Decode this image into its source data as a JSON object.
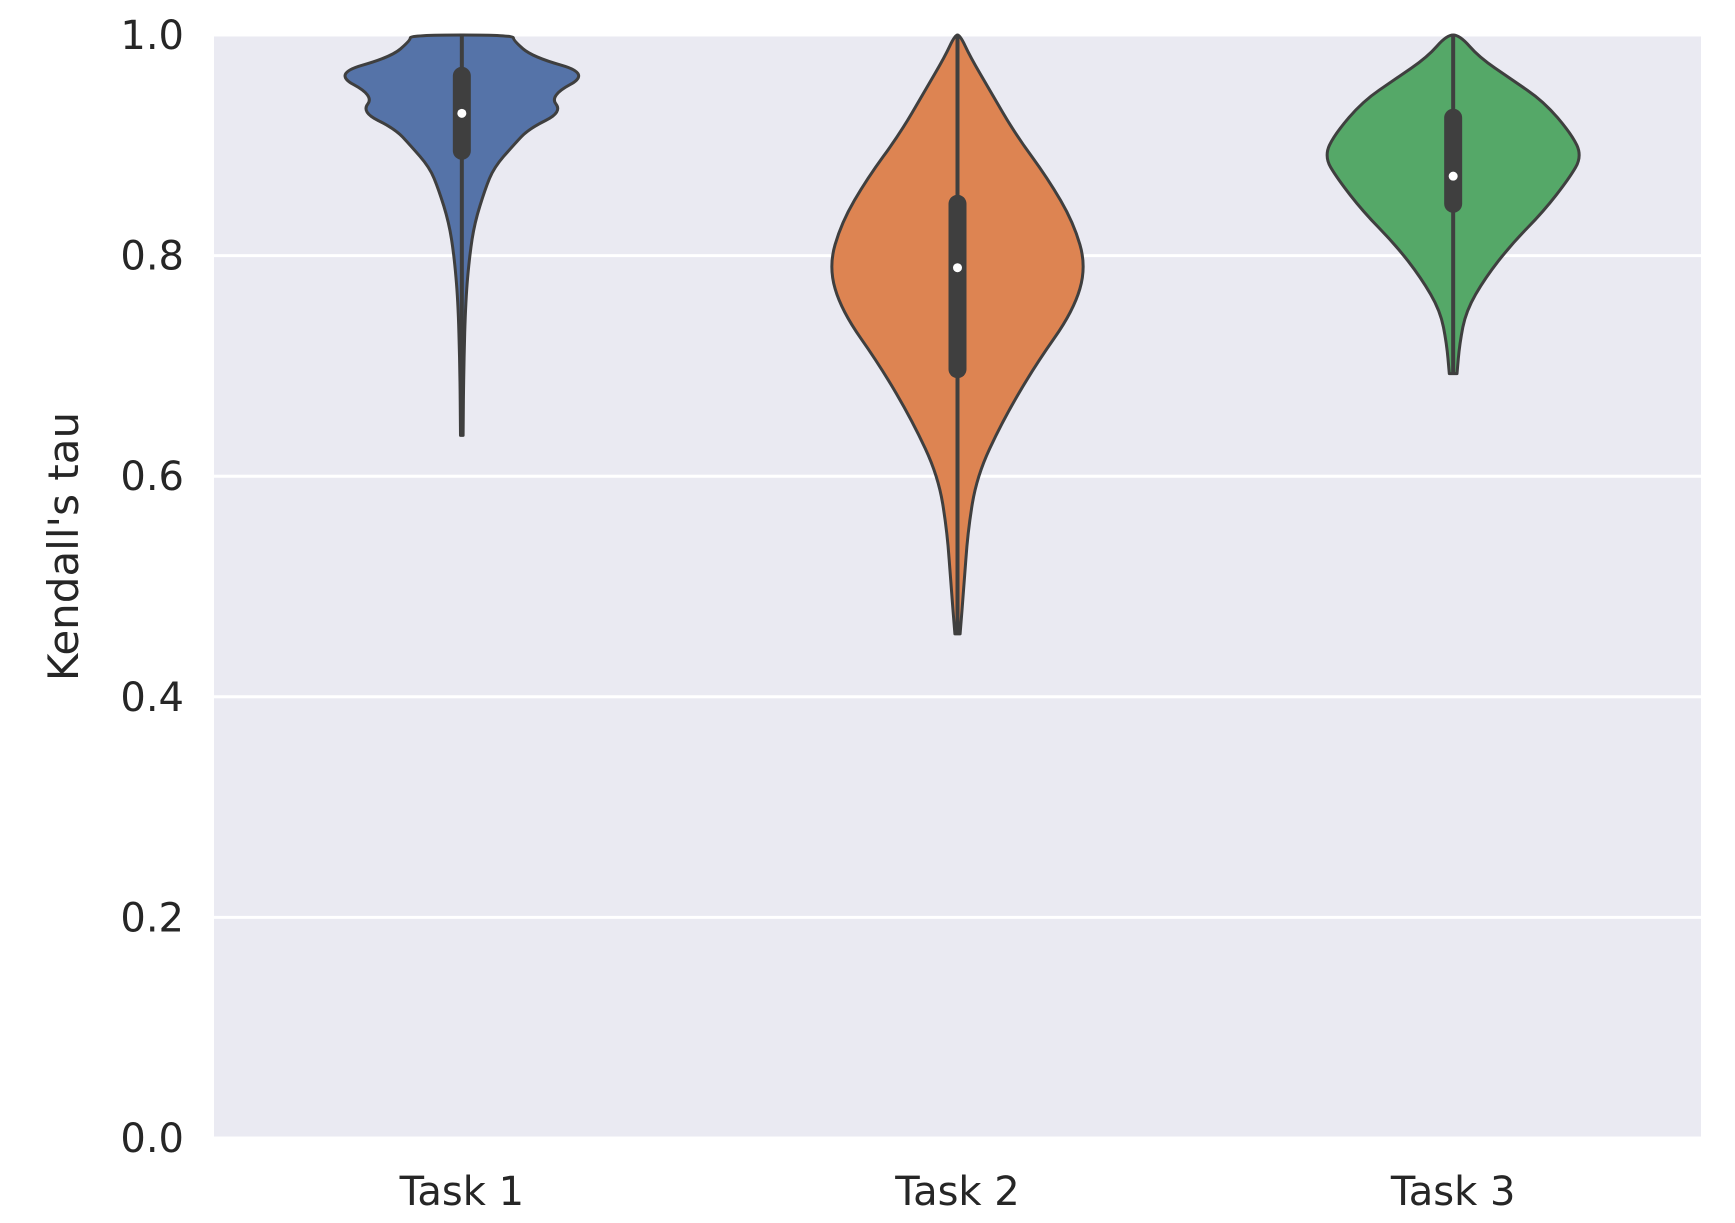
{
  "chart_data": {
    "type": "violin",
    "title": "",
    "xlabel": "",
    "ylabel": "Kendall's tau",
    "ylim": [
      0.0,
      1.0
    ],
    "yticks": [
      0.0,
      0.2,
      0.4,
      0.6,
      0.8,
      1.0
    ],
    "ytick_labels": [
      "0.0",
      "0.2",
      "0.4",
      "0.6",
      "0.8",
      "1.0"
    ],
    "grid": true,
    "background_color": "#EAEAF2",
    "grid_color": "#FFFFFF",
    "categories": [
      "Task 1",
      "Task 2",
      "Task 3"
    ],
    "series": [
      {
        "category": "Task 1",
        "color": "#5573A8",
        "min": 0.637,
        "q1": 0.895,
        "median": 0.929,
        "q3": 0.963,
        "max": 1.0,
        "density_profile": [
          [
            0.637,
            0.01
          ],
          [
            0.7,
            0.015
          ],
          [
            0.76,
            0.03
          ],
          [
            0.8,
            0.06
          ],
          [
            0.83,
            0.1
          ],
          [
            0.86,
            0.18
          ],
          [
            0.88,
            0.25
          ],
          [
            0.9,
            0.4
          ],
          [
            0.915,
            0.52
          ],
          [
            0.93,
            0.78
          ],
          [
            0.945,
            0.68
          ],
          [
            0.965,
            1.0
          ],
          [
            0.98,
            0.55
          ],
          [
            0.995,
            0.4
          ],
          [
            1.0,
            0.4
          ]
        ]
      },
      {
        "category": "Task 2",
        "color": "#DD8452",
        "min": 0.457,
        "q1": 0.697,
        "median": 0.789,
        "q3": 0.847,
        "max": 1.0,
        "density_profile": [
          [
            0.457,
            0.02
          ],
          [
            0.5,
            0.05
          ],
          [
            0.55,
            0.08
          ],
          [
            0.6,
            0.15
          ],
          [
            0.65,
            0.35
          ],
          [
            0.7,
            0.6
          ],
          [
            0.75,
            0.9
          ],
          [
            0.79,
            1.0
          ],
          [
            0.83,
            0.9
          ],
          [
            0.87,
            0.7
          ],
          [
            0.91,
            0.45
          ],
          [
            0.95,
            0.25
          ],
          [
            0.98,
            0.1
          ],
          [
            1.0,
            0.02
          ]
        ]
      },
      {
        "category": "Task 3",
        "color": "#55A868",
        "min": 0.693,
        "q1": 0.847,
        "median": 0.872,
        "q3": 0.925,
        "max": 1.0,
        "density_profile": [
          [
            0.693,
            0.03
          ],
          [
            0.72,
            0.05
          ],
          [
            0.75,
            0.1
          ],
          [
            0.78,
            0.25
          ],
          [
            0.81,
            0.45
          ],
          [
            0.84,
            0.7
          ],
          [
            0.87,
            0.9
          ],
          [
            0.89,
            1.0
          ],
          [
            0.91,
            0.92
          ],
          [
            0.94,
            0.7
          ],
          [
            0.96,
            0.45
          ],
          [
            0.98,
            0.2
          ],
          [
            1.0,
            0.05
          ]
        ]
      }
    ]
  }
}
